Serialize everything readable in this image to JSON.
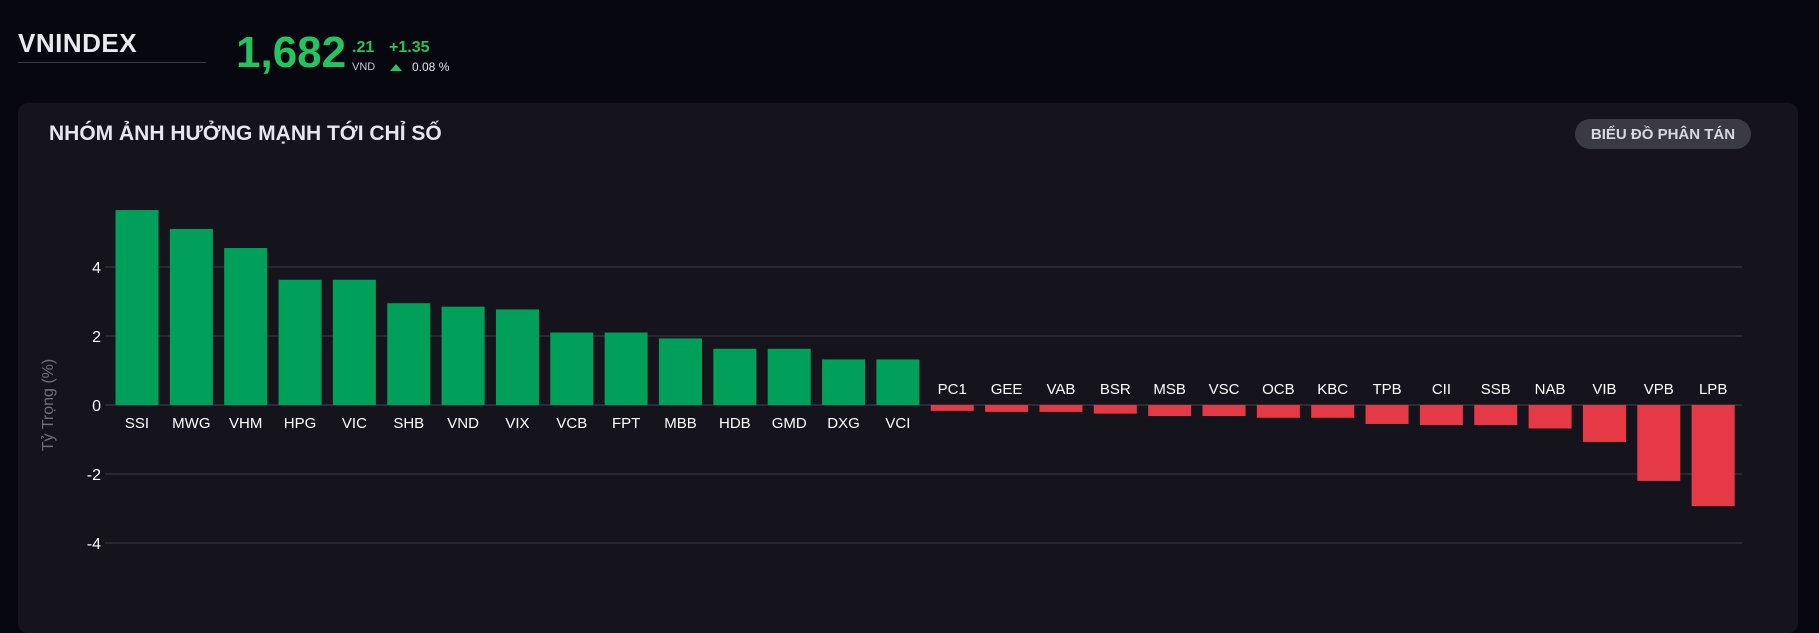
{
  "header": {
    "index_name": "VNINDEX",
    "price_main": "1,682",
    "price_decimal": ".21",
    "price_unit": "VND",
    "change_abs": "+1.35",
    "change_pct": "0.08 %"
  },
  "panel": {
    "title": "NHÓM ẢNH HƯỞNG MẠNH TỚI CHỈ SỐ",
    "scatter_button": "BIỂU ĐỒ PHÂN TÁN"
  },
  "colors": {
    "up": "#00a05a",
    "down": "#e63946",
    "accent": "#22c55e",
    "grid": "#3a3a46"
  },
  "chart_data": {
    "type": "bar",
    "ylabel": "Tỷ Trọng (%)",
    "yticks": [
      4,
      2,
      0,
      -2,
      -4
    ],
    "ylim": [
      -6,
      6
    ],
    "grid": true,
    "categories": [
      "SSI",
      "MWG",
      "VHM",
      "HPG",
      "VIC",
      "SHB",
      "VND",
      "VIX",
      "VCB",
      "FPT",
      "MBB",
      "HDB",
      "GMD",
      "DXG",
      "VCI",
      "PC1",
      "GEE",
      "VAB",
      "BSR",
      "MSB",
      "VSC",
      "OCB",
      "KBC",
      "TPB",
      "CII",
      "SSB",
      "NAB",
      "VIB",
      "VPB",
      "LPB"
    ],
    "values": [
      5.65,
      5.1,
      4.55,
      3.63,
      3.63,
      2.95,
      2.85,
      2.77,
      2.1,
      2.1,
      1.93,
      1.63,
      1.63,
      1.32,
      1.32,
      -0.17,
      -0.2,
      -0.2,
      -0.25,
      -0.32,
      -0.32,
      -0.37,
      -0.37,
      -0.55,
      -0.58,
      -0.58,
      -0.68,
      -1.07,
      -2.2,
      -2.93
    ]
  }
}
